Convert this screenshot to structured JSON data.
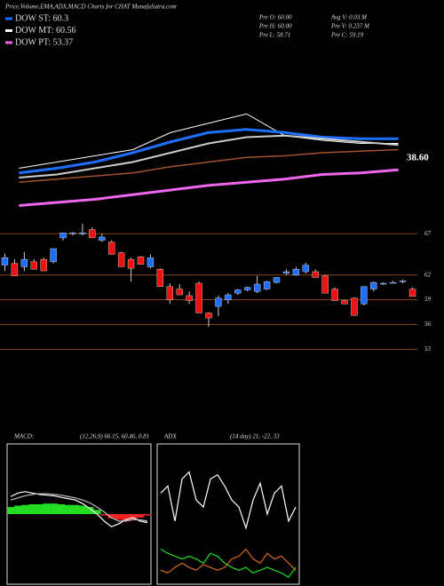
{
  "header": {
    "title": "Price,Volume,EMA,ADX,MACD Charts for CHAT MunafaSutra.com",
    "legend": [
      {
        "label": "DOW ST: 60.3",
        "color": "#1e6fff"
      },
      {
        "label": "DOW MT: 60.56",
        "color": "#ffffff"
      },
      {
        "label": "DOW PT: 53.37",
        "color": "#ee66ee"
      }
    ],
    "stats": [
      "Pre  O: 60.00",
      "Avg V: 0.03 M",
      "Pre  H: 60.00",
      "Pre  V: 0.237 M",
      "Pre  L: 58.71",
      "Pre  C: 59.19"
    ]
  },
  "chart_data": [
    {
      "type": "line",
      "ylim": [
        0,
        100
      ],
      "annotation": "38.60",
      "series": [
        {
          "color": "#ffffff",
          "width": 1,
          "values": [
            26,
            30,
            34,
            38,
            49,
            55,
            61,
            47,
            44,
            42,
            42
          ]
        },
        {
          "color": "#1e6fff",
          "width": 3,
          "values": [
            23,
            26,
            30,
            36,
            43,
            49,
            51,
            49,
            46,
            45,
            45
          ]
        },
        {
          "color": "#cccccc",
          "width": 2,
          "values": [
            20,
            22,
            26,
            30,
            36,
            42,
            46,
            47,
            45,
            43,
            41
          ]
        },
        {
          "color": "#a0522d",
          "width": 1.5,
          "values": [
            17,
            19,
            21,
            23,
            27,
            30,
            33,
            34,
            36,
            37,
            38
          ]
        },
        {
          "color": "#ee66ee",
          "width": 3,
          "values": [
            2,
            4,
            6,
            9,
            12,
            15,
            17,
            19,
            22,
            23,
            25
          ]
        }
      ]
    },
    {
      "type": "candlestick",
      "ylim": [
        51,
        69.5
      ],
      "yticks": [
        67,
        62,
        59,
        56,
        53
      ],
      "grid": true,
      "grid_color": "#8b4513",
      "up_color": "#1e6fff",
      "down_color": "#ee1111",
      "open": [
        63.2,
        63.4,
        63,
        63.6,
        63.9,
        63.6,
        66.5,
        67,
        67,
        67.5,
        66.2,
        66,
        64.7,
        63.9,
        64.2,
        63,
        62.7,
        60.6,
        60.3,
        59.5,
        61,
        57.4,
        58.2,
        59,
        59.8,
        60.2,
        60,
        60.3,
        61.1,
        62.2,
        62,
        62.4,
        62.4,
        61.9,
        60.3,
        58.9,
        59.2,
        58.5,
        60.3,
        61,
        61.1,
        61.3,
        60.3
      ],
      "high": [
        64.6,
        63.9,
        64.8,
        63.9,
        64.1,
        65.2,
        67.1,
        67.2,
        68.2,
        67.8,
        67,
        66.2,
        64.8,
        64.1,
        64.3,
        64.5,
        62.8,
        61,
        60.9,
        60,
        61.2,
        57.5,
        59.5,
        59.8,
        60.3,
        60.6,
        61.9,
        61.3,
        61.7,
        62.7,
        63,
        63.5,
        62.7,
        62,
        60.5,
        59,
        59.3,
        60.6,
        61.2,
        61.1,
        61.3,
        61.4,
        60.5
      ],
      "low": [
        62.5,
        61.9,
        62.5,
        62.7,
        62.5,
        63.4,
        66.2,
        66.8,
        66.8,
        66.5,
        66,
        64.5,
        63,
        61.2,
        63.3,
        62.8,
        60.6,
        58.5,
        59.6,
        58.5,
        57.4,
        55.7,
        57,
        58.5,
        59.6,
        60,
        59.8,
        60.2,
        61,
        62,
        61.9,
        62.2,
        61.7,
        59.8,
        58.9,
        58.5,
        57.1,
        58.3,
        60,
        60.8,
        61,
        61,
        59.4
      ],
      "close": [
        64.1,
        61.9,
        63.9,
        62.7,
        62.5,
        65.2,
        67.1,
        67.1,
        67.1,
        66.5,
        66.6,
        64.5,
        63,
        62.8,
        63.3,
        64.1,
        60.6,
        59,
        59.6,
        58.9,
        57.4,
        56.8,
        59.2,
        59.6,
        60.2,
        60.5,
        60.9,
        61.2,
        61.7,
        62.4,
        62.7,
        63.2,
        61.7,
        59.8,
        58.9,
        58.5,
        57.1,
        60.6,
        61.1,
        61,
        61.1,
        61.3,
        59.4
      ]
    },
    {
      "type": "macd",
      "title": "MACD:",
      "subtitle": "(12,26,9) 66.15, 60.46, 0.81",
      "ylim": [
        -1,
        1
      ],
      "bars": [
        0.1,
        0.12,
        0.13,
        0.14,
        0.14,
        0.15,
        0.15,
        0.14,
        0.13,
        0.13,
        0.12,
        0.1,
        0.06,
        -0.02,
        -0.06,
        -0.08,
        -0.1,
        -0.08,
        -0.05,
        -0.02
      ],
      "up_color": "#22dd22",
      "down_color": "#ee2222",
      "series": [
        {
          "color": "#ffffff",
          "values": [
            0.25,
            0.3,
            0.32,
            0.3,
            0.28,
            0.27,
            0.26,
            0.24,
            0.22,
            0.2,
            0.15,
            0.08,
            0,
            -0.1,
            -0.18,
            -0.14,
            -0.08,
            -0.05,
            -0.1,
            -0.12
          ]
        },
        {
          "color": "#bbbbbb",
          "values": [
            0.2,
            0.23,
            0.26,
            0.28,
            0.29,
            0.29,
            0.28,
            0.27,
            0.25,
            0.23,
            0.2,
            0.16,
            0.1,
            0.03,
            -0.05,
            -0.1,
            -0.1,
            -0.08,
            -0.08,
            -0.1
          ]
        }
      ]
    },
    {
      "type": "adx",
      "title": "ADX",
      "subtitle": "(14 day) 21, -22, 33",
      "ylim": [
        0,
        100
      ],
      "series": [
        {
          "color": "#ffffff",
          "values": [
            65,
            70,
            45,
            75,
            80,
            60,
            55,
            75,
            78,
            70,
            60,
            55,
            40,
            60,
            72,
            50,
            65,
            70,
            45,
            55
          ]
        },
        {
          "color": "#22dd22",
          "values": [
            25,
            22,
            20,
            18,
            20,
            18,
            15,
            22,
            20,
            15,
            12,
            10,
            12,
            8,
            10,
            12,
            10,
            8,
            5,
            12
          ]
        },
        {
          "color": "#d2691e",
          "values": [
            10,
            8,
            12,
            15,
            12,
            10,
            14,
            12,
            10,
            12,
            18,
            20,
            25,
            18,
            15,
            22,
            18,
            20,
            15,
            10
          ]
        }
      ]
    }
  ]
}
